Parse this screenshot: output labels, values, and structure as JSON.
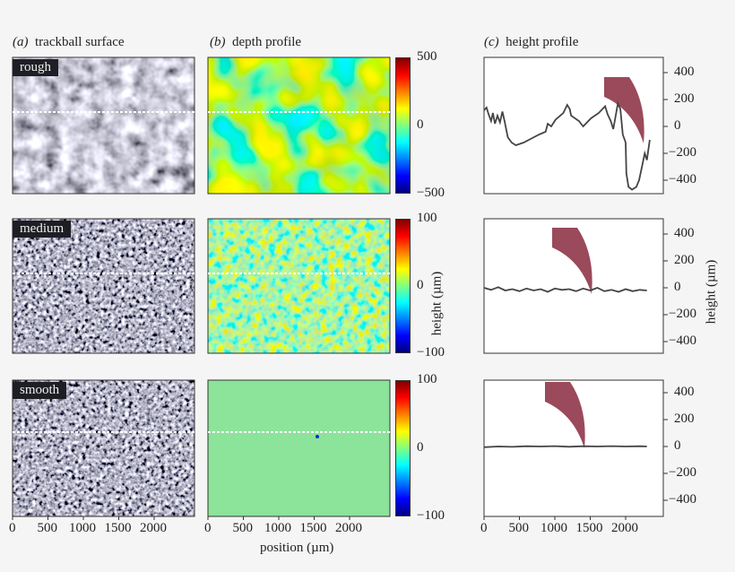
{
  "headers": {
    "a": {
      "tag": "(a)",
      "title": "trackball surface"
    },
    "b": {
      "tag": "(b)",
      "title": "depth profile"
    },
    "c": {
      "tag": "(c)",
      "title": "height profile"
    }
  },
  "rows": [
    {
      "label": "rough",
      "colorbar_ticks": [
        "500",
        "0",
        "−500"
      ]
    },
    {
      "label": "medium",
      "colorbar_ticks": [
        "100",
        "0",
        "−100"
      ]
    },
    {
      "label": "smooth",
      "colorbar_ticks": [
        "100",
        "0",
        "−100"
      ]
    }
  ],
  "colorbar_label": "height (µm)",
  "right_axis_label": "height (µm)",
  "x_axis_label": "position (µm)",
  "x_ticks": [
    "0",
    "500",
    "1000",
    "1500",
    "2000"
  ],
  "y_ticks": [
    "400",
    "200",
    "0",
    "−200",
    "−400"
  ],
  "colors": {
    "background": "#f5f5f5",
    "line": "#444444",
    "colormap": "jet"
  },
  "chart_data": {
    "type": "line",
    "xlabel": "position (µm)",
    "ylabel": "height (µm)",
    "xlim": [
      0,
      2500
    ],
    "ylim": [
      -500,
      500
    ],
    "series": [
      {
        "name": "rough",
        "x": [
          0,
          35,
          65,
          100,
          125,
          155,
          190,
          225,
          260,
          290,
          335,
          390,
          450,
          560,
          670,
          780,
          870,
          900,
          950,
          1010,
          1120,
          1175,
          1210,
          1230,
          1340,
          1400,
          1510,
          1620,
          1710,
          1745,
          1790,
          1825,
          1860,
          1890,
          1925,
          1960,
          2000,
          2010,
          2040,
          2090,
          2150,
          2190,
          2230,
          2270,
          2300,
          2340
        ],
        "y": [
          120,
          140,
          90,
          40,
          100,
          20,
          80,
          30,
          110,
          40,
          -80,
          -120,
          -140,
          -120,
          -90,
          -60,
          -40,
          20,
          0,
          50,
          100,
          160,
          130,
          80,
          40,
          0,
          60,
          100,
          150,
          90,
          40,
          -20,
          80,
          170,
          130,
          -60,
          -120,
          -350,
          -450,
          -470,
          -450,
          -400,
          -300,
          -200,
          -250,
          -100
        ]
      },
      {
        "name": "medium",
        "x": [
          0,
          100,
          200,
          300,
          400,
          500,
          600,
          700,
          800,
          900,
          1000,
          1100,
          1200,
          1300,
          1400,
          1500,
          1600,
          1700,
          1800,
          1900,
          2000,
          2100,
          2200,
          2300
        ],
        "y": [
          0,
          -15,
          5,
          -20,
          -10,
          -25,
          -5,
          -20,
          -10,
          -30,
          -5,
          -15,
          -10,
          -25,
          -5,
          -20,
          0,
          -25,
          -15,
          -30,
          -10,
          -25,
          -15,
          -20
        ]
      },
      {
        "name": "smooth",
        "x": [
          0,
          200,
          400,
          600,
          800,
          1000,
          1200,
          1400,
          1600,
          1800,
          2000,
          2200,
          2300
        ],
        "y": [
          -5,
          0,
          -3,
          2,
          0,
          3,
          -2,
          2,
          0,
          3,
          0,
          2,
          0
        ]
      }
    ]
  }
}
